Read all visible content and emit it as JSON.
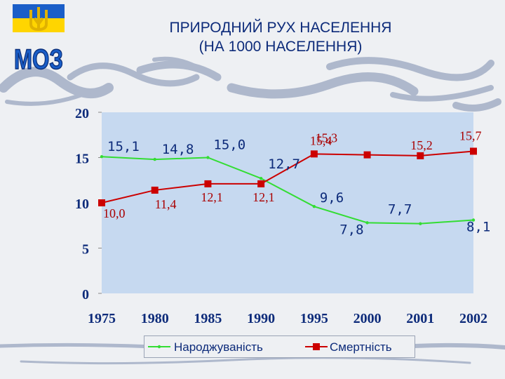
{
  "slide": {
    "logo_text": "МОЗ",
    "title_line1": "ПРИРОДНИЙ РУХ НАСЕЛЕННЯ",
    "title_line2": "(НА 1000 НАСЕЛЕННЯ)"
  },
  "colors": {
    "plot_area": "#c6d9f0",
    "births": "#33dd33",
    "deaths": "#cc0000",
    "title": "#0d2b7a",
    "logo_blue": "#1a5ec8",
    "logo_yellow": "#ffd500"
  },
  "chart_data": {
    "type": "line",
    "categories": [
      "1975",
      "1980",
      "1985",
      "1990",
      "1995",
      "2000",
      "2001",
      "2002"
    ],
    "ylim": [
      0,
      20
    ],
    "yticks": [
      "0",
      "5",
      "10",
      "15",
      "20"
    ],
    "grid": false,
    "legend_position": "bottom",
    "series": [
      {
        "name": "Народжуваність",
        "values": [
          15.1,
          14.8,
          15.0,
          12.7,
          9.6,
          7.8,
          7.7,
          8.1
        ],
        "labels": [
          "15,1",
          "14,8",
          "15,0",
          "12,7",
          "9,6",
          "7,8",
          "7,7",
          "8,1"
        ]
      },
      {
        "name": "Смертність",
        "values": [
          10.0,
          11.4,
          12.1,
          12.1,
          15.4,
          15.3,
          15.2,
          15.7
        ],
        "labels": [
          "10,0",
          "11,4",
          "12,1",
          "12,1",
          "15,4",
          "15,3",
          "15,2",
          "15,7"
        ]
      }
    ]
  }
}
